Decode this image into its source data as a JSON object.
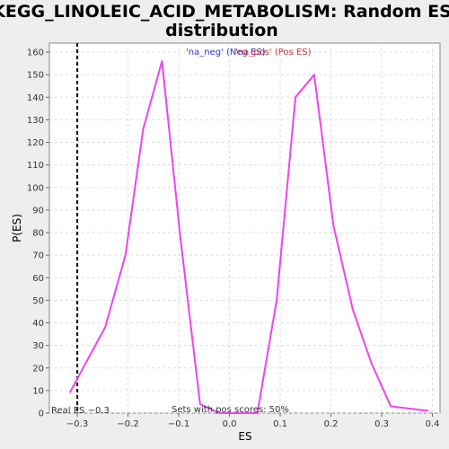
{
  "chart_data": {
    "type": "line",
    "title_line1": "KEGG_LINOLEIC_ACID_METABOLISM: Random ES",
    "title_line2": "distribution",
    "xlabel": "ES",
    "ylabel": "P(ES)",
    "xlim": [
      -0.355,
      0.415
    ],
    "ylim": [
      0,
      164
    ],
    "xticks": [
      -0.3,
      -0.2,
      -0.1,
      0.0,
      0.1,
      0.2,
      0.3,
      0.4
    ],
    "xtick_labels": [
      "−0.3",
      "−0.2",
      "−0.1",
      "0.0",
      "0.1",
      "0.2",
      "0.3",
      "0.4"
    ],
    "yticks": [
      0,
      10,
      20,
      30,
      40,
      50,
      60,
      70,
      80,
      90,
      100,
      110,
      120,
      130,
      140,
      150,
      160
    ],
    "ytick_labels": [
      "0",
      "10",
      "20",
      "30",
      "40",
      "50",
      "60",
      "70",
      "80",
      "90",
      "100",
      "110",
      "120",
      "130",
      "140",
      "150",
      "160"
    ],
    "grid": true,
    "line_color": "#ee44ee",
    "series": [
      {
        "x": [
          -0.315,
          -0.245,
          -0.205,
          -0.17,
          -0.133,
          -0.097,
          -0.058,
          -0.02,
          0.02,
          0.055,
          0.093,
          0.13,
          0.167,
          0.205,
          0.243,
          0.28,
          0.318,
          0.392
        ],
        "y": [
          9,
          38,
          70,
          126,
          156,
          78,
          4,
          0,
          0,
          0,
          50,
          140,
          150,
          83,
          46,
          22,
          3,
          1
        ]
      }
    ],
    "real_es": -0.3,
    "real_es_label": "Real ES −0.3",
    "legend_neg": "'na_neg' (Neg ES)",
    "legend_pos": "'na_pos' (Pos ES)",
    "legend_neg_color": "#3333cc",
    "legend_pos_color": "#cc3333",
    "pos_scores_label": "Sets with pos scores: 50%"
  }
}
